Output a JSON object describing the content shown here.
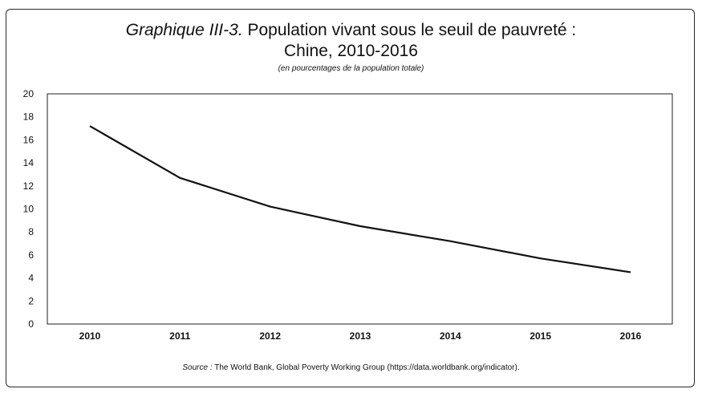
{
  "chart_data": {
    "type": "line",
    "title_prefix": "Graphique III-3.",
    "title_main": " Population vivant sous le seuil de pauvreté :",
    "title_line2": "Chine, 2010-2016",
    "subtitle": "(en pourcentages de la population totale)",
    "source_label": "Source :",
    "source_text": " The World Bank, Global Poverty Working Group (https://data.worldbank.org/indicator).",
    "x": [
      "2010",
      "2011",
      "2012",
      "2013",
      "2014",
      "2015",
      "2016"
    ],
    "series": [
      {
        "values": [
          17.2,
          12.7,
          10.2,
          8.5,
          7.2,
          5.7,
          4.5
        ]
      }
    ],
    "ylim": [
      0,
      20
    ],
    "yticks": [
      0,
      2,
      4,
      6,
      8,
      10,
      12,
      14,
      16,
      18,
      20
    ],
    "grid": false,
    "line_color": "#111111"
  }
}
